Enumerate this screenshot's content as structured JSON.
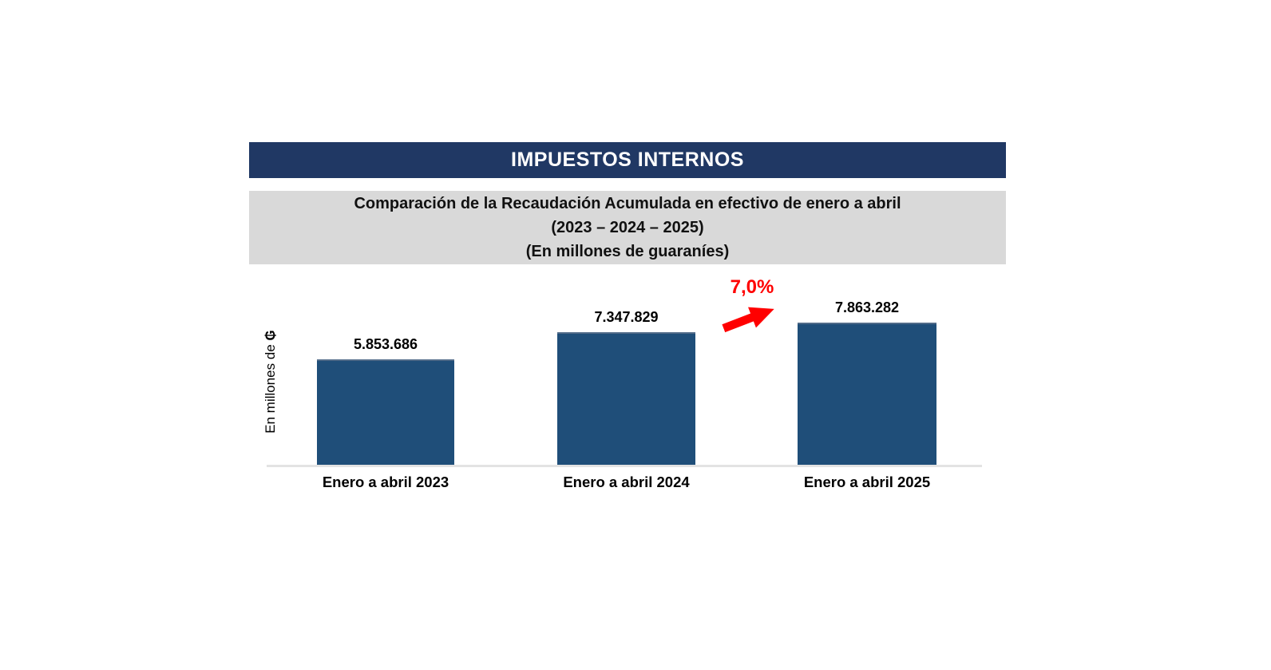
{
  "header": {
    "title": "IMPUESTOS INTERNOS",
    "background": "#203864"
  },
  "subtitle_panel": {
    "background": "#d9d9d9",
    "lines": [
      "Comparación de la Recaudación Acumulada en efectivo de enero a abril",
      "(2023 – 2024 – 2025)",
      "(En millones de guaraníes)"
    ]
  },
  "chart_data": {
    "type": "bar",
    "title": "IMPUESTOS INTERNOS",
    "subtitle": "Comparación de la Recaudación Acumulada en efectivo de enero a abril (2023 – 2024 – 2025) (En millones de guaraníes)",
    "categories": [
      "Enero a abril 2023",
      "Enero a abril 2024",
      "Enero a abril 2025"
    ],
    "values": [
      5853686,
      7347829,
      7863282
    ],
    "value_labels": [
      "5.853.686",
      "7.347.829",
      "7.863.282"
    ],
    "xlabel": "",
    "ylabel": "En millones de ₲",
    "ylabel_text": "En millones de ",
    "ylabel_currency": "₲",
    "ylim": [
      0,
      7863282
    ],
    "grid": false,
    "legend": false,
    "bar_color": "#1f4e79",
    "baseline_color": "#e3e3e3",
    "annotation": {
      "label": "7,0%",
      "color": "#ff0000",
      "shape": "up-right-arrow",
      "between": [
        "Enero a abril 2024",
        "Enero a abril 2025"
      ]
    }
  }
}
